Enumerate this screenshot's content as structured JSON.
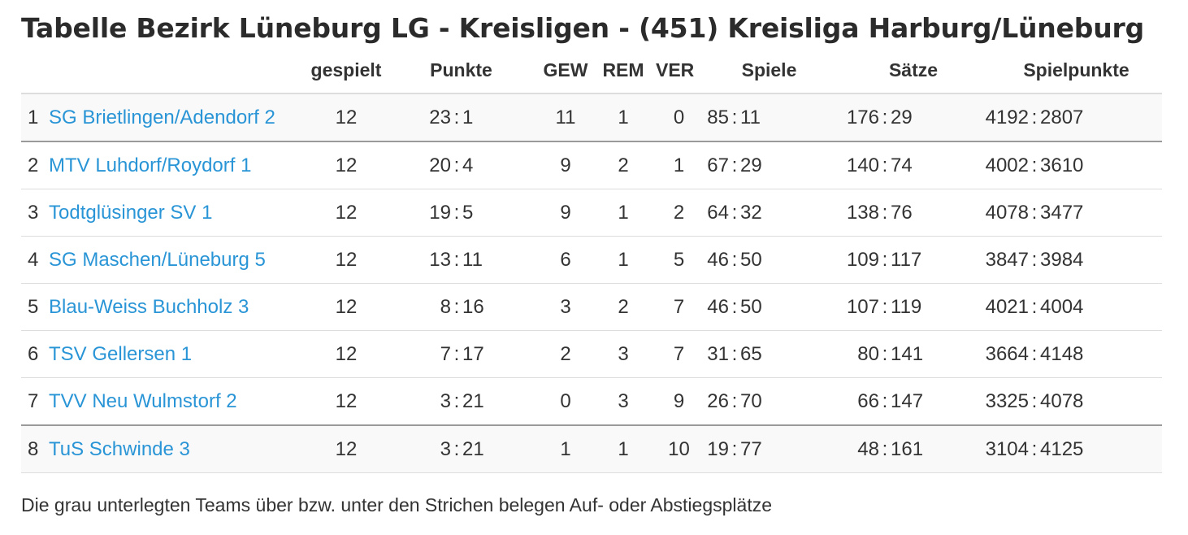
{
  "title": "Tabelle Bezirk Lüneburg LG - Kreisligen - (451) Kreisliga Harburg/Lüneburg",
  "columns": {
    "rank": "",
    "team": "",
    "gespielt": "gespielt",
    "punkte": "Punkte",
    "gew": "GEW",
    "rem": "REM",
    "ver": "VER",
    "spiele": "Spiele",
    "saetze": "Sätze",
    "spielpunkte": "Spielpunkte"
  },
  "rows": [
    {
      "rank": "1",
      "team": "SG Brietlingen/Adendorf 2",
      "gespielt": "12",
      "punkte": [
        "23",
        "1"
      ],
      "gew": "11",
      "rem": "1",
      "ver": "0",
      "spiele": [
        "85",
        "11"
      ],
      "saetze": [
        "176",
        "29"
      ],
      "spielpunkte": [
        "4192",
        "2807"
      ]
    },
    {
      "rank": "2",
      "team": "MTV Luhdorf/Roydorf 1",
      "gespielt": "12",
      "punkte": [
        "20",
        "4"
      ],
      "gew": "9",
      "rem": "2",
      "ver": "1",
      "spiele": [
        "67",
        "29"
      ],
      "saetze": [
        "140",
        "74"
      ],
      "spielpunkte": [
        "4002",
        "3610"
      ]
    },
    {
      "rank": "3",
      "team": "Todtglüsinger SV 1",
      "gespielt": "12",
      "punkte": [
        "19",
        "5"
      ],
      "gew": "9",
      "rem": "1",
      "ver": "2",
      "spiele": [
        "64",
        "32"
      ],
      "saetze": [
        "138",
        "76"
      ],
      "spielpunkte": [
        "4078",
        "3477"
      ]
    },
    {
      "rank": "4",
      "team": "SG Maschen/Lüneburg 5",
      "gespielt": "12",
      "punkte": [
        "13",
        "11"
      ],
      "gew": "6",
      "rem": "1",
      "ver": "5",
      "spiele": [
        "46",
        "50"
      ],
      "saetze": [
        "109",
        "117"
      ],
      "spielpunkte": [
        "3847",
        "3984"
      ]
    },
    {
      "rank": "5",
      "team": "Blau-Weiss Buchholz 3",
      "gespielt": "12",
      "punkte": [
        "8",
        "16"
      ],
      "gew": "3",
      "rem": "2",
      "ver": "7",
      "spiele": [
        "46",
        "50"
      ],
      "saetze": [
        "107",
        "119"
      ],
      "spielpunkte": [
        "4021",
        "4004"
      ]
    },
    {
      "rank": "6",
      "team": "TSV Gellersen 1",
      "gespielt": "12",
      "punkte": [
        "7",
        "17"
      ],
      "gew": "2",
      "rem": "3",
      "ver": "7",
      "spiele": [
        "31",
        "65"
      ],
      "saetze": [
        "80",
        "141"
      ],
      "spielpunkte": [
        "3664",
        "4148"
      ]
    },
    {
      "rank": "7",
      "team": "TVV Neu Wulmstorf 2",
      "gespielt": "12",
      "punkte": [
        "3",
        "21"
      ],
      "gew": "0",
      "rem": "3",
      "ver": "9",
      "spiele": [
        "26",
        "70"
      ],
      "saetze": [
        "66",
        "147"
      ],
      "spielpunkte": [
        "3325",
        "4078"
      ]
    },
    {
      "rank": "8",
      "team": "TuS Schwinde 3",
      "gespielt": "12",
      "punkte": [
        "3",
        "21"
      ],
      "gew": "1",
      "rem": "1",
      "ver": "10",
      "spiele": [
        "19",
        "77"
      ],
      "saetze": [
        "48",
        "161"
      ],
      "spielpunkte": [
        "3104",
        "4125"
      ]
    }
  ],
  "footnote": "Die grau unterlegten Teams über bzw. unter den Strichen belegen Auf- oder Abstiegsplätze",
  "colors": {
    "link": "#2a95d6",
    "shaded_row": "#f9f9f9",
    "promotion_line": "#9a9a9a"
  }
}
